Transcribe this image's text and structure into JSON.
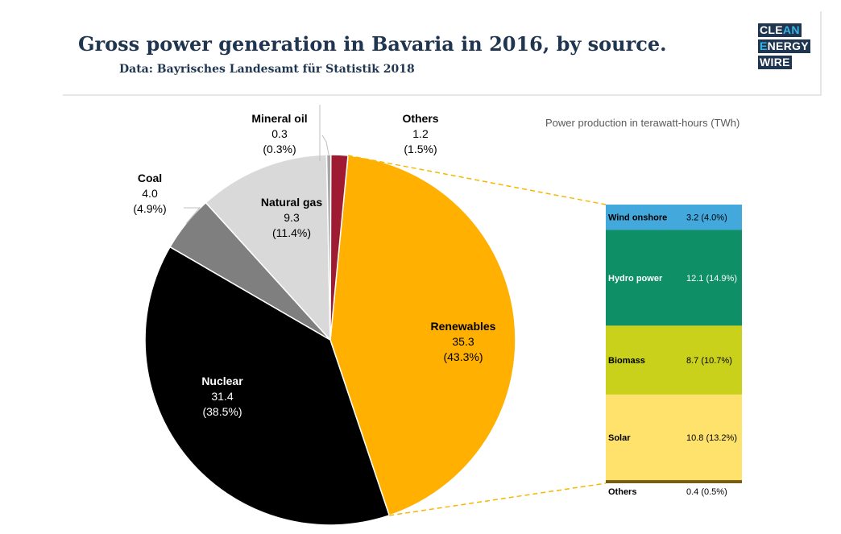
{
  "header": {
    "title": "Gross power generation in Bavaria in 2016, by source.",
    "subtitle": "Data: Bayrisches Landesamt für Statistik 2018"
  },
  "logo": {
    "lines": [
      "CLEAN",
      "ENERGY",
      "WIRE"
    ],
    "accent_color": "#36b5e8",
    "base_color": "#1f3550"
  },
  "chart_data": {
    "type": "pie",
    "unit_note": "Power production in terawatt-hours (TWh)",
    "slices": [
      {
        "label": "Renewables",
        "value": "35.3",
        "pct": "(43.3%)",
        "color": "#ffb000"
      },
      {
        "label": "Nuclear",
        "value": "31.4",
        "pct": "(38.5%)",
        "color": "#000000"
      },
      {
        "label": "Coal",
        "value": "4.0",
        "pct": "(4.9%)",
        "color": "#7f7f7f"
      },
      {
        "label": "Natural gas",
        "value": "9.3",
        "pct": "(11.4%)",
        "color": "#d9d9d9"
      },
      {
        "label": "Mineral oil",
        "value": "0.3",
        "pct": "(0.3%)",
        "color": "#a6a6a6"
      },
      {
        "label": "Others",
        "value": "1.2",
        "pct": "(1.5%)",
        "color": "#9e1b32"
      }
    ],
    "breakdown": {
      "of": "Renewables",
      "items": [
        {
          "label": "Wind onshore",
          "value": "3.2",
          "pct": "(4.0%)",
          "color": "#43a8dc"
        },
        {
          "label": "Hydro power",
          "value": "12.1",
          "pct": "(14.9%)",
          "color": "#0e8f66"
        },
        {
          "label": "Biomass",
          "value": "8.7",
          "pct": "(10.7%)",
          "color": "#c9d11b"
        },
        {
          "label": "Solar",
          "value": "10.8",
          "pct": "(13.2%)",
          "color": "#ffe26b"
        },
        {
          "label": "Others",
          "value": "0.4",
          "pct": "(0.5%)",
          "color": "#7a5b12"
        }
      ]
    }
  }
}
